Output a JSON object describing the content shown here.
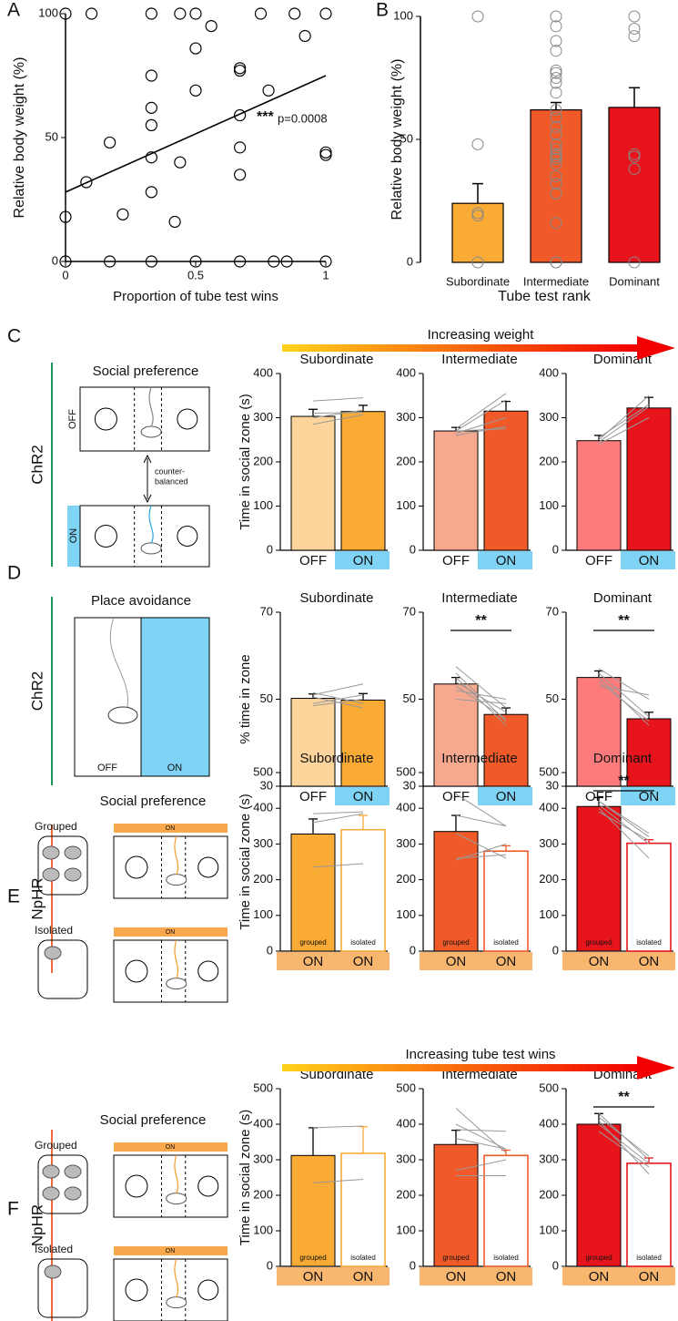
{
  "chart_data": [
    {
      "type": "scatter",
      "panel": "A",
      "x": [
        0,
        0.1,
        0.33,
        0.44,
        0.5,
        0.75,
        0.88,
        1,
        0.56,
        0.5,
        0.92,
        0.67,
        0.67,
        0.78,
        0.33,
        0.33,
        0.5,
        0.67,
        0.33,
        0.17,
        0.67,
        0.33,
        0.44,
        1,
        1,
        0.08,
        0.67,
        0.33,
        0,
        0.22,
        0.42,
        0,
        0.17,
        0.33,
        0.5,
        0.67,
        0.8,
        0.85,
        1
      ],
      "y": [
        100,
        100,
        100,
        100,
        100,
        100,
        100,
        100,
        95,
        86,
        91,
        78,
        77,
        69,
        75,
        62,
        69,
        59,
        55,
        48,
        46,
        42,
        40,
        44,
        43,
        32,
        35,
        28,
        18,
        19,
        16,
        0,
        0,
        0,
        0,
        0,
        0,
        0,
        0
      ],
      "xlim": [
        0,
        1
      ],
      "ylim": [
        0,
        100
      ],
      "xticks": [
        0,
        0.5,
        1
      ],
      "yticks": [
        0,
        50,
        100
      ],
      "xlabel": "Proportion of tube test wins",
      "ylabel": "Relative body weight (%)",
      "fit": {
        "x": [
          0,
          1
        ],
        "y": [
          28,
          75
        ]
      },
      "annotation_stars": "***",
      "annotation": "p=0.0008"
    },
    {
      "type": "bar",
      "panel": "B",
      "categories": [
        "Subordinate",
        "Intermediate",
        "Dominant"
      ],
      "values": [
        24,
        62,
        63
      ],
      "errors": [
        8,
        3,
        8
      ],
      "colors": [
        "#f9ab35",
        "#f05a28",
        "#e8141b"
      ],
      "points": [
        [
          100,
          48,
          20,
          19,
          0
        ],
        [
          100,
          96,
          90,
          86,
          78,
          77,
          75,
          73,
          69,
          62,
          59,
          55,
          52,
          48,
          46,
          44,
          43,
          42,
          40,
          35,
          32,
          28,
          16,
          0,
          0
        ],
        [
          100,
          95,
          92,
          44,
          43,
          38,
          0
        ]
      ],
      "ylim": [
        0,
        100
      ],
      "yticks": [
        0,
        50,
        100
      ],
      "xlabel": "Tube test rank",
      "ylabel": "Relative body weight (%)"
    },
    {
      "type": "paired_bar",
      "title": "Subordinate",
      "title_color": "#f9ab35",
      "categories": [
        "OFF",
        "ON"
      ],
      "values": [
        303,
        314
      ],
      "errors": [
        16,
        14
      ],
      "colors": [
        "#fdd49c",
        "#f9ab35"
      ],
      "label_bg": [
        "#ffffff",
        "#7fd3f4"
      ],
      "pairs": [
        [
          338,
          345
        ],
        [
          310,
          312
        ],
        [
          300,
          317
        ],
        [
          285,
          307
        ]
      ],
      "ylim": [
        0,
        400
      ],
      "yticks": [
        0,
        100,
        200,
        300,
        400
      ],
      "ylabel": "Time in social zone (s)"
    },
    {
      "type": "paired_bar",
      "title": "Intermediate",
      "title_color": "#f05a28",
      "categories": [
        "OFF",
        "ON"
      ],
      "values": [
        270,
        315
      ],
      "errors": [
        8,
        22
      ],
      "colors": [
        "#f7a98f",
        "#f05a28"
      ],
      "label_bg": [
        "#ffffff",
        "#7fd3f4"
      ],
      "pairs": [
        [
          270,
          340
        ],
        [
          275,
          355
        ],
        [
          265,
          300
        ],
        [
          260,
          280
        ],
        [
          270,
          275
        ]
      ],
      "ylim": [
        0,
        400
      ],
      "yticks": [
        0,
        100,
        200,
        300,
        400
      ]
    },
    {
      "type": "paired_bar",
      "title": "Dominant",
      "title_color": "#e8141b",
      "categories": [
        "OFF",
        "ON"
      ],
      "values": [
        248,
        322
      ],
      "errors": [
        12,
        24
      ],
      "colors": [
        "#ff7b7b",
        "#e8141b"
      ],
      "label_bg": [
        "#ffffff",
        "#7fd3f4"
      ],
      "pairs": [
        [
          255,
          330
        ],
        [
          245,
          325
        ],
        [
          240,
          300
        ],
        [
          250,
          350
        ]
      ],
      "ylim": [
        0,
        400
      ],
      "yticks": [
        0,
        100,
        200,
        300,
        400
      ]
    },
    {
      "type": "paired_bar",
      "title": "Subordinate",
      "title_color": "#f9ab35",
      "categories": [
        "OFF",
        "ON"
      ],
      "values": [
        50.2,
        49.8
      ],
      "errors": [
        1,
        1.5
      ],
      "colors": [
        "#fdd49c",
        "#f9ab35"
      ],
      "label_bg": [
        "#ffffff",
        "#7fd3f4"
      ],
      "pairs": [
        [
          51,
          53.5
        ],
        [
          50.5,
          48
        ],
        [
          49,
          51
        ],
        [
          51.5,
          49
        ],
        [
          48.5,
          50
        ]
      ],
      "ylim": [
        30,
        70
      ],
      "yticks": [
        30,
        50,
        70
      ],
      "ylabel": "% time in zone"
    },
    {
      "type": "paired_bar",
      "title": "Intermediate",
      "title_color": "#f05a28",
      "categories": [
        "OFF",
        "ON"
      ],
      "values": [
        53.5,
        46.5
      ],
      "errors": [
        1.5,
        1.5
      ],
      "colors": [
        "#f7a98f",
        "#f05a28"
      ],
      "label_bg": [
        "#ffffff",
        "#7fd3f4"
      ],
      "pairs": [
        [
          57.5,
          48
        ],
        [
          56,
          45
        ],
        [
          55,
          44
        ],
        [
          54,
          47
        ],
        [
          52,
          50
        ],
        [
          50,
          49
        ],
        [
          53,
          45.5
        ]
      ],
      "ylim": [
        30,
        70
      ],
      "yticks": [
        30,
        50,
        70
      ],
      "significance": "**"
    },
    {
      "type": "paired_bar",
      "title": "Dominant",
      "title_color": "#e8141b",
      "categories": [
        "OFF",
        "ON"
      ],
      "values": [
        55,
        45.5
      ],
      "errors": [
        1.5,
        1.5
      ],
      "colors": [
        "#ff7b7b",
        "#e8141b"
      ],
      "label_bg": [
        "#ffffff",
        "#7fd3f4"
      ],
      "pairs": [
        [
          57,
          50
        ],
        [
          56,
          46
        ],
        [
          54,
          45
        ],
        [
          55,
          44
        ],
        [
          53,
          51
        ]
      ],
      "ylim": [
        30,
        70
      ],
      "yticks": [
        30,
        50,
        70
      ],
      "significance": "**"
    },
    {
      "type": "paired_bar",
      "title": "Subordinate",
      "title_color": "#f9ab35",
      "categories": [
        "ON",
        "ON"
      ],
      "bar_labels": [
        "grouped",
        "isolated"
      ],
      "hollow": [
        false,
        true
      ],
      "values": [
        328,
        340
      ],
      "errors": [
        42,
        40
      ],
      "colors": [
        "#f9ab35",
        "#f9ab35"
      ],
      "label_bg": [
        "#f9b66e",
        "#f9b66e"
      ],
      "pairs": [
        [
          385,
          390
        ],
        [
          235,
          245
        ],
        [
          360,
          385
        ]
      ],
      "ylim": [
        0,
        500
      ],
      "yticks": [
        0,
        100,
        200,
        300,
        400,
        500
      ],
      "ylabel": "Time in social zone (s)"
    },
    {
      "type": "paired_bar",
      "title": "Intermediate",
      "title_color": "#f05a28",
      "categories": [
        "ON",
        "ON"
      ],
      "bar_labels": [
        "grouped",
        "isolated"
      ],
      "hollow": [
        false,
        true
      ],
      "values": [
        335,
        280
      ],
      "errors": [
        45,
        15
      ],
      "colors": [
        "#f05a28",
        "#f05a28"
      ],
      "label_bg": [
        "#f9b66e",
        "#f9b66e"
      ],
      "pairs": [
        [
          440,
          350
        ],
        [
          380,
          350
        ],
        [
          260,
          270
        ],
        [
          255,
          300
        ],
        [
          330,
          260
        ]
      ],
      "ylim": [
        0,
        500
      ],
      "yticks": [
        0,
        100,
        200,
        300,
        400,
        500
      ]
    },
    {
      "type": "paired_bar",
      "title": "Dominant",
      "title_color": "#e8141b",
      "categories": [
        "ON",
        "ON"
      ],
      "bar_labels": [
        "grouped",
        "isolated"
      ],
      "hollow": [
        false,
        true
      ],
      "values": [
        405,
        302
      ],
      "errors": [
        25,
        10
      ],
      "colors": [
        "#e8141b",
        "#e8141b"
      ],
      "label_bg": [
        "#f9b66e",
        "#f9b66e"
      ],
      "pairs": [
        [
          420,
          320
        ],
        [
          410,
          300
        ],
        [
          400,
          260
        ],
        [
          390,
          310
        ],
        [
          420,
          330
        ]
      ],
      "ylim": [
        0,
        500
      ],
      "yticks": [
        0,
        100,
        200,
        300,
        400,
        500
      ],
      "significance": "**"
    },
    {
      "type": "paired_bar",
      "title": "Subordinate",
      "title_color": "#f9ab35",
      "categories": [
        "ON",
        "ON"
      ],
      "bar_labels": [
        "grouped",
        "isolated"
      ],
      "hollow": [
        false,
        true
      ],
      "values": [
        312,
        318
      ],
      "errors": [
        78,
        75
      ],
      "colors": [
        "#f9ab35",
        "#f9ab35"
      ],
      "label_bg": [
        "#f9b66e",
        "#f9b66e"
      ],
      "pairs": [
        [
          390,
          395
        ],
        [
          235,
          245
        ]
      ],
      "ylim": [
        0,
        500
      ],
      "yticks": [
        0,
        100,
        200,
        300,
        400,
        500
      ],
      "ylabel": "Time in social zone (s)"
    },
    {
      "type": "paired_bar",
      "title": "Intermediate",
      "title_color": "#f05a28",
      "categories": [
        "ON",
        "ON"
      ],
      "bar_labels": [
        "grouped",
        "isolated"
      ],
      "hollow": [
        false,
        true
      ],
      "values": [
        343,
        312
      ],
      "errors": [
        40,
        15
      ],
      "colors": [
        "#f05a28",
        "#f05a28"
      ],
      "label_bg": [
        "#f9b66e",
        "#f9b66e"
      ],
      "pairs": [
        [
          445,
          320
        ],
        [
          400,
          330
        ],
        [
          385,
          380
        ],
        [
          270,
          300
        ],
        [
          255,
          255
        ],
        [
          360,
          330
        ]
      ],
      "ylim": [
        0,
        500
      ],
      "yticks": [
        0,
        100,
        200,
        300,
        400,
        500
      ]
    },
    {
      "type": "paired_bar",
      "title": "Dominant",
      "title_color": "#e8141b",
      "categories": [
        "ON",
        "ON"
      ],
      "bar_labels": [
        "grouped",
        "isolated"
      ],
      "hollow": [
        false,
        true
      ],
      "values": [
        400,
        290
      ],
      "errors": [
        30,
        15
      ],
      "colors": [
        "#e8141b",
        "#e8141b"
      ],
      "label_bg": [
        "#f9b66e",
        "#f9b66e"
      ],
      "pairs": [
        [
          420,
          310
        ],
        [
          430,
          300
        ],
        [
          410,
          260
        ],
        [
          380,
          280
        ],
        [
          400,
          290
        ]
      ],
      "ylim": [
        0,
        500
      ],
      "yticks": [
        0,
        100,
        200,
        300,
        400,
        500
      ],
      "significance": "**"
    }
  ],
  "figure": {
    "rows": [
      {
        "letter": "C",
        "group": "ChR2",
        "group_color": "#1a9a5a",
        "diagram_title": "Social preference",
        "states": [
          "OFF",
          "ON"
        ],
        "note": [
          "counter-",
          "balanced"
        ],
        "arrow": "Increasing weight"
      },
      {
        "letter": "D",
        "group": "ChR2",
        "group_color": "#1a9a5a",
        "diagram_title": "Place avoidance",
        "states": [
          "OFF",
          "ON"
        ]
      },
      {
        "letter": "E",
        "group": "NpHR",
        "group_color": "#f06a3a",
        "diagram_title": "Social preference",
        "groups": [
          "Grouped",
          "Isolated"
        ],
        "states": [
          "ON",
          "ON"
        ]
      },
      {
        "letter": "F",
        "group": "NpHR",
        "group_color": "#f06a3a",
        "diagram_title": "Social preference",
        "groups": [
          "Grouped",
          "Isolated"
        ],
        "states": [
          "ON",
          "ON"
        ],
        "arrow": "Increasing tube test wins"
      }
    ]
  }
}
